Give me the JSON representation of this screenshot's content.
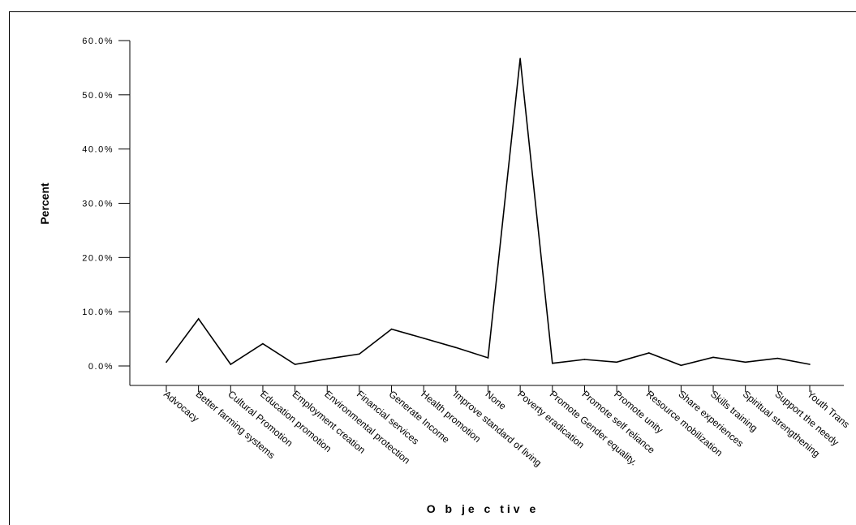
{
  "chart_data": {
    "type": "line",
    "title": "",
    "xlabel": "O b je c tiv e",
    "ylabel": "Percent",
    "ylim": [
      0,
      60
    ],
    "yticks": [
      0,
      10,
      20,
      30,
      40,
      50,
      60
    ],
    "ytick_labels": [
      "0.0%",
      "10.0%",
      "20.0%",
      "30.0%",
      "40.0%",
      "50.0%",
      "60.0%"
    ],
    "grid": false,
    "line_color": "#000000",
    "categories": [
      "Advocacy",
      "Better farming systems",
      "Cultural Promotion",
      "Education promotion",
      "Employment creation",
      "Environmental protection",
      "Financial services",
      "Generate Income",
      "Health promotion",
      "Improve standard of living",
      "None",
      "Poverty eradication",
      "Promote Gender equality.",
      "Promote self reliance",
      "Promote unity",
      "Resource mobilization",
      "Share experiences",
      "Skills training",
      "Spiritual strengthening",
      "Support the needy",
      "Youth Trans"
    ],
    "values": [
      0.7,
      8.7,
      0.3,
      4.1,
      0.3,
      1.3,
      2.2,
      6.8,
      5.1,
      3.4,
      1.5,
      56.7,
      0.5,
      1.2,
      0.7,
      2.4,
      0.1,
      1.6,
      0.7,
      1.4,
      0.3
    ]
  }
}
